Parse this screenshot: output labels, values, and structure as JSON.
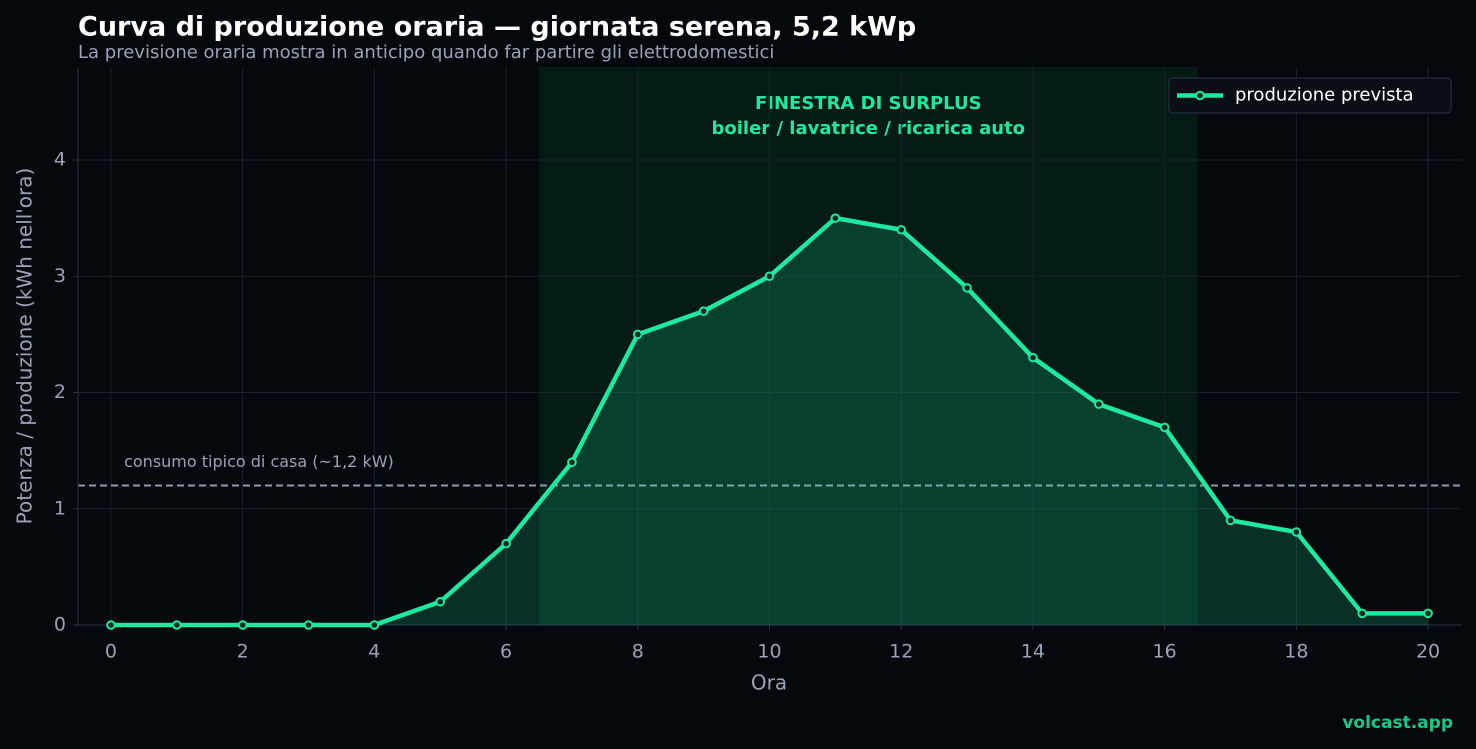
{
  "chart_data": {
    "type": "line",
    "title": "Curva di produzione oraria — giornata serena, 5,2 kWp",
    "subtitle": "La previsione oraria mostra in anticipo quando far partire gli elettrodomestici",
    "x_label": "Ora",
    "y_label": "Potenza / produzione (kWh nell'ora)",
    "x": [
      0,
      1,
      2,
      3,
      4,
      5,
      6,
      7,
      8,
      9,
      10,
      11,
      12,
      13,
      14,
      15,
      16,
      17,
      18,
      19,
      20
    ],
    "series": [
      {
        "name": "produzione prevista",
        "color": "#1de9a0",
        "values": [
          0,
          0,
          0,
          0,
          0,
          0.2,
          0.7,
          1.4,
          2.5,
          2.7,
          3.0,
          3.5,
          3.4,
          2.9,
          2.3,
          1.9,
          1.7,
          0.9,
          0.8,
          0.1,
          0.1
        ]
      }
    ],
    "xlim": [
      -0.5,
      20.5
    ],
    "ylim": [
      0,
      4.8
    ],
    "xticks": [
      0,
      2,
      4,
      6,
      8,
      10,
      12,
      14,
      16,
      18,
      20
    ],
    "yticks": [
      0,
      1,
      2,
      3,
      4
    ],
    "grid": true,
    "legend": "upper right",
    "reference_line": {
      "value": 1.2,
      "label": "consumo tipico di casa (~1,2 kW)"
    },
    "highlight_span": {
      "range": [
        6.5,
        16.5
      ],
      "label": [
        "FINESTRA DI SURPLUS",
        "boiler / lavatrice / ricarica auto"
      ]
    }
  },
  "footer": "volcast.app"
}
